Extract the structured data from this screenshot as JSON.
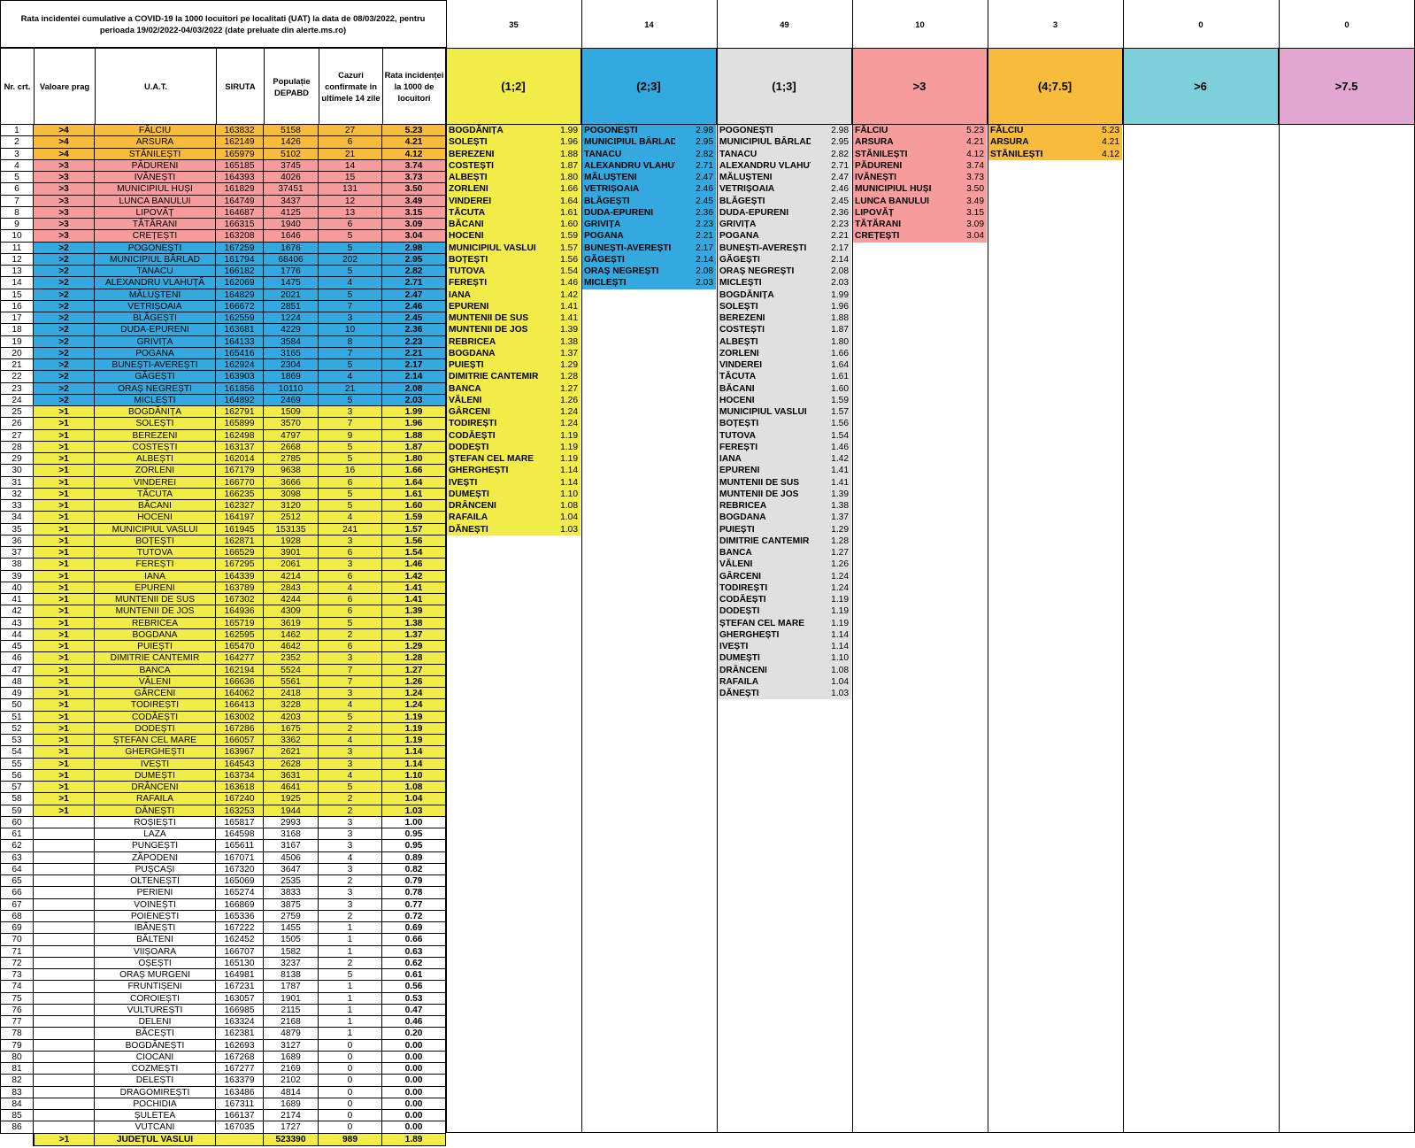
{
  "title": "Rata incidentei cumulative a COVID-19 la 1000 locuitori pe localitati (UAT) la data de 08/03/2022, pentru perioada 19/02/2022-04/03/2022 (date preluate din alerte.ms.ro)",
  "headers": [
    "Nr. crt.",
    "Valoare prag",
    "U.A.T.",
    "SIRUTA",
    "Populație DEPABD",
    "Cazuri confirmate in ultimele 14 zile",
    "Rata incidenței la 1000 de locuitori"
  ],
  "colors": {
    "gt4": "#f8bc3c",
    "gt3": "#f69c9c",
    "gt2": "#33a9e0",
    "gt1": "#f2ec48",
    "grey": "#e0e0e0",
    "gt6": "#7dcfda",
    "gt75": "#e2a7d0"
  },
  "rows": [
    [
      "1",
      ">4",
      "FĂLCIU",
      "163832",
      "5158",
      "27",
      "5.23"
    ],
    [
      "2",
      ">4",
      "ARSURA",
      "162149",
      "1426",
      "6",
      "4.21"
    ],
    [
      "3",
      ">4",
      "STĂNILEȘTI",
      "165979",
      "5102",
      "21",
      "4.12"
    ],
    [
      "4",
      ">3",
      "PĂDURENI",
      "165185",
      "3745",
      "14",
      "3.74"
    ],
    [
      "5",
      ">3",
      "IVĂNEȘTI",
      "164393",
      "4026",
      "15",
      "3.73"
    ],
    [
      "6",
      ">3",
      "MUNICIPIUL HUȘI",
      "161829",
      "37451",
      "131",
      "3.50"
    ],
    [
      "7",
      ">3",
      "LUNCA BANULUI",
      "164749",
      "3437",
      "12",
      "3.49"
    ],
    [
      "8",
      ">3",
      "LIPOVĂȚ",
      "164687",
      "4125",
      "13",
      "3.15"
    ],
    [
      "9",
      ">3",
      "TĂTĂRANI",
      "166315",
      "1940",
      "6",
      "3.09"
    ],
    [
      "10",
      ">3",
      "CREȚEȘTI",
      "163208",
      "1646",
      "5",
      "3.04"
    ],
    [
      "11",
      ">2",
      "POGONEȘTI",
      "167259",
      "1676",
      "5",
      "2.98"
    ],
    [
      "12",
      ">2",
      "MUNICIPIUL BÂRLAD",
      "161794",
      "68406",
      "202",
      "2.95"
    ],
    [
      "13",
      ">2",
      "TANACU",
      "166182",
      "1776",
      "5",
      "2.82"
    ],
    [
      "14",
      ">2",
      "ALEXANDRU VLAHUȚĂ",
      "162069",
      "1475",
      "4",
      "2.71"
    ],
    [
      "15",
      ">2",
      "MĂLUȘTENI",
      "164829",
      "2021",
      "5",
      "2.47"
    ],
    [
      "16",
      ">2",
      "VETRIȘOAIA",
      "166672",
      "2851",
      "7",
      "2.46"
    ],
    [
      "17",
      ">2",
      "BLĂGEȘTI",
      "162559",
      "1224",
      "3",
      "2.45"
    ],
    [
      "18",
      ">2",
      "DUDA-EPURENI",
      "163681",
      "4229",
      "10",
      "2.36"
    ],
    [
      "19",
      ">2",
      "GRIVIȚA",
      "164133",
      "3584",
      "8",
      "2.23"
    ],
    [
      "20",
      ">2",
      "POGANA",
      "165416",
      "3165",
      "7",
      "2.21"
    ],
    [
      "21",
      ">2",
      "BUNEȘTI-AVEREȘTI",
      "162924",
      "2304",
      "5",
      "2.17"
    ],
    [
      "22",
      ">2",
      "GĂGEȘTI",
      "163903",
      "1869",
      "4",
      "2.14"
    ],
    [
      "23",
      ">2",
      "ORAȘ NEGREȘTI",
      "161856",
      "10110",
      "21",
      "2.08"
    ],
    [
      "24",
      ">2",
      "MICLEȘTI",
      "164892",
      "2469",
      "5",
      "2.03"
    ],
    [
      "25",
      ">1",
      "BOGDĂNIȚA",
      "162791",
      "1509",
      "3",
      "1.99"
    ],
    [
      "26",
      ">1",
      "SOLEȘTI",
      "165899",
      "3570",
      "7",
      "1.96"
    ],
    [
      "27",
      ">1",
      "BEREZENI",
      "162498",
      "4797",
      "9",
      "1.88"
    ],
    [
      "28",
      ">1",
      "COSTEȘTI",
      "163137",
      "2668",
      "5",
      "1.87"
    ],
    [
      "29",
      ">1",
      "ALBEȘTI",
      "162014",
      "2785",
      "5",
      "1.80"
    ],
    [
      "30",
      ">1",
      "ZORLENI",
      "167179",
      "9638",
      "16",
      "1.66"
    ],
    [
      "31",
      ">1",
      "VINDEREI",
      "166770",
      "3666",
      "6",
      "1.64"
    ],
    [
      "32",
      ">1",
      "TĂCUTA",
      "166235",
      "3098",
      "5",
      "1.61"
    ],
    [
      "33",
      ">1",
      "BĂCANI",
      "162327",
      "3120",
      "5",
      "1.60"
    ],
    [
      "34",
      ">1",
      "HOCENI",
      "164197",
      "2512",
      "4",
      "1.59"
    ],
    [
      "35",
      ">1",
      "MUNICIPIUL VASLUI",
      "161945",
      "153135",
      "241",
      "1.57"
    ],
    [
      "36",
      ">1",
      "BOȚEȘTI",
      "162871",
      "1928",
      "3",
      "1.56"
    ],
    [
      "37",
      ">1",
      "TUTOVA",
      "166529",
      "3901",
      "6",
      "1.54"
    ],
    [
      "38",
      ">1",
      "FEREȘTI",
      "167295",
      "2061",
      "3",
      "1.46"
    ],
    [
      "39",
      ">1",
      "IANA",
      "164339",
      "4214",
      "6",
      "1.42"
    ],
    [
      "40",
      ">1",
      "EPURENI",
      "163789",
      "2843",
      "4",
      "1.41"
    ],
    [
      "41",
      ">1",
      "MUNTENII DE SUS",
      "167302",
      "4244",
      "6",
      "1.41"
    ],
    [
      "42",
      ">1",
      "MUNTENII DE JOS",
      "164936",
      "4309",
      "6",
      "1.39"
    ],
    [
      "43",
      ">1",
      "REBRICEA",
      "165719",
      "3619",
      "5",
      "1.38"
    ],
    [
      "44",
      ">1",
      "BOGDANA",
      "162595",
      "1462",
      "2",
      "1.37"
    ],
    [
      "45",
      ">1",
      "PUIEȘTI",
      "165470",
      "4642",
      "6",
      "1.29"
    ],
    [
      "46",
      ">1",
      "DIMITRIE CANTEMIR",
      "164277",
      "2352",
      "3",
      "1.28"
    ],
    [
      "47",
      ">1",
      "BANCA",
      "162194",
      "5524",
      "7",
      "1.27"
    ],
    [
      "48",
      ">1",
      "VĂLENI",
      "166636",
      "5561",
      "7",
      "1.26"
    ],
    [
      "49",
      ">1",
      "GÂRCENI",
      "164062",
      "2418",
      "3",
      "1.24"
    ],
    [
      "50",
      ">1",
      "TODIREȘTI",
      "166413",
      "3228",
      "4",
      "1.24"
    ],
    [
      "51",
      ">1",
      "CODĂEȘTI",
      "163002",
      "4203",
      "5",
      "1.19"
    ],
    [
      "52",
      ">1",
      "DODEȘTI",
      "167286",
      "1675",
      "2",
      "1.19"
    ],
    [
      "53",
      ">1",
      "ȘTEFAN CEL MARE",
      "166057",
      "3362",
      "4",
      "1.19"
    ],
    [
      "54",
      ">1",
      "GHERGHEȘTI",
      "163967",
      "2621",
      "3",
      "1.14"
    ],
    [
      "55",
      ">1",
      "IVEȘTI",
      "164543",
      "2628",
      "3",
      "1.14"
    ],
    [
      "56",
      ">1",
      "DUMEȘTI",
      "163734",
      "3631",
      "4",
      "1.10"
    ],
    [
      "57",
      ">1",
      "DRÂNCENI",
      "163618",
      "4641",
      "5",
      "1.08"
    ],
    [
      "58",
      ">1",
      "RAFAILA",
      "167240",
      "1925",
      "2",
      "1.04"
    ],
    [
      "59",
      ">1",
      "DĂNEȘTI",
      "163253",
      "1944",
      "2",
      "1.03"
    ],
    [
      "60",
      "",
      "ROȘIEȘTI",
      "165817",
      "2993",
      "3",
      "1.00"
    ],
    [
      "61",
      "",
      "LAZA",
      "164598",
      "3168",
      "3",
      "0.95"
    ],
    [
      "62",
      "",
      "PUNGEȘTI",
      "165611",
      "3167",
      "3",
      "0.95"
    ],
    [
      "63",
      "",
      "ZĂPODENI",
      "167071",
      "4506",
      "4",
      "0.89"
    ],
    [
      "64",
      "",
      "PUȘCAȘI",
      "167320",
      "3647",
      "3",
      "0.82"
    ],
    [
      "65",
      "",
      "OLTENEȘTI",
      "165069",
      "2535",
      "2",
      "0.79"
    ],
    [
      "66",
      "",
      "PERIENI",
      "165274",
      "3833",
      "3",
      "0.78"
    ],
    [
      "67",
      "",
      "VOINEȘTI",
      "166869",
      "3875",
      "3",
      "0.77"
    ],
    [
      "68",
      "",
      "POIENEȘTI",
      "165336",
      "2759",
      "2",
      "0.72"
    ],
    [
      "69",
      "",
      "IBĂNEȘTI",
      "167222",
      "1455",
      "1",
      "0.69"
    ],
    [
      "70",
      "",
      "BĂLTENI",
      "162452",
      "1505",
      "1",
      "0.66"
    ],
    [
      "71",
      "",
      "VIIȘOARA",
      "166707",
      "1582",
      "1",
      "0.63"
    ],
    [
      "72",
      "",
      "OȘEȘTI",
      "165130",
      "3237",
      "2",
      "0.62"
    ],
    [
      "73",
      "",
      "ORAȘ MURGENI",
      "164981",
      "8138",
      "5",
      "0.61"
    ],
    [
      "74",
      "",
      "FRUNTIȘENI",
      "167231",
      "1787",
      "1",
      "0.56"
    ],
    [
      "75",
      "",
      "COROIEȘTI",
      "163057",
      "1901",
      "1",
      "0.53"
    ],
    [
      "76",
      "",
      "VULTUREȘTI",
      "166985",
      "2115",
      "1",
      "0.47"
    ],
    [
      "77",
      "",
      "DELENI",
      "163324",
      "2168",
      "1",
      "0.46"
    ],
    [
      "78",
      "",
      "BĂCEȘTI",
      "162381",
      "4879",
      "1",
      "0.20"
    ],
    [
      "79",
      "",
      "BOGDĂNEȘTI",
      "162693",
      "3127",
      "0",
      "0.00"
    ],
    [
      "80",
      "",
      "CIOCANI",
      "167268",
      "1689",
      "0",
      "0.00"
    ],
    [
      "81",
      "",
      "COZMEȘTI",
      "167277",
      "2169",
      "0",
      "0.00"
    ],
    [
      "82",
      "",
      "DELEȘTI",
      "163379",
      "2102",
      "0",
      "0.00"
    ],
    [
      "83",
      "",
      "DRAGOMIREȘTI",
      "163486",
      "4814",
      "0",
      "0.00"
    ],
    [
      "84",
      "",
      "POCHIDIA",
      "167311",
      "1689",
      "0",
      "0.00"
    ],
    [
      "85",
      "",
      "ȘULETEA",
      "166137",
      "2174",
      "0",
      "0.00"
    ],
    [
      "86",
      "",
      "VUTCANI",
      "167035",
      "1727",
      "0",
      "0.00"
    ]
  ],
  "total": [
    "",
    ">1",
    "JUDEȚUL VASLUI",
    "",
    "523390",
    "989",
    "1.89"
  ],
  "panels": [
    {
      "count": "35",
      "label": "(1;2]",
      "color": "#f2ec48",
      "items": [
        [
          "BOGDĂNIȚA",
          "1.99"
        ],
        [
          "SOLEȘTI",
          "1.96"
        ],
        [
          "BEREZENI",
          "1.88"
        ],
        [
          "COSTEȘTI",
          "1.87"
        ],
        [
          "ALBEȘTI",
          "1.80"
        ],
        [
          "ZORLENI",
          "1.66"
        ],
        [
          "VINDEREI",
          "1.64"
        ],
        [
          "TĂCUTA",
          "1.61"
        ],
        [
          "BĂCANI",
          "1.60"
        ],
        [
          "HOCENI",
          "1.59"
        ],
        [
          "MUNICIPIUL VASLUI",
          "1.57"
        ],
        [
          "BOȚEȘTI",
          "1.56"
        ],
        [
          "TUTOVA",
          "1.54"
        ],
        [
          "FEREȘTI",
          "1.46"
        ],
        [
          "IANA",
          "1.42"
        ],
        [
          "EPURENI",
          "1.41"
        ],
        [
          "MUNTENII DE SUS",
          "1.41"
        ],
        [
          "MUNTENII DE JOS",
          "1.39"
        ],
        [
          "REBRICEA",
          "1.38"
        ],
        [
          "BOGDANA",
          "1.37"
        ],
        [
          "PUIEȘTI",
          "1.29"
        ],
        [
          "DIMITRIE CANTEMIR",
          "1.28"
        ],
        [
          "BANCA",
          "1.27"
        ],
        [
          "VĂLENI",
          "1.26"
        ],
        [
          "GÂRCENI",
          "1.24"
        ],
        [
          "TODIREȘTI",
          "1.24"
        ],
        [
          "CODĂEȘTI",
          "1.19"
        ],
        [
          "DODEȘTI",
          "1.19"
        ],
        [
          "ȘTEFAN CEL MARE",
          "1.19"
        ],
        [
          "GHERGHEȘTI",
          "1.14"
        ],
        [
          "IVEȘTI",
          "1.14"
        ],
        [
          "DUMEȘTI",
          "1.10"
        ],
        [
          "DRÂNCENI",
          "1.08"
        ],
        [
          "RAFAILA",
          "1.04"
        ],
        [
          "DĂNEȘTI",
          "1.03"
        ]
      ]
    },
    {
      "count": "14",
      "label": "(2;3]",
      "color": "#33a9e0",
      "items": [
        [
          "POGONEȘTI",
          "2.98"
        ],
        [
          "MUNICIPIUL BÂRLAD",
          "2.95"
        ],
        [
          "TANACU",
          "2.82"
        ],
        [
          "ALEXANDRU VLAHUȚ",
          "2.71"
        ],
        [
          "MĂLUȘTENI",
          "2.47"
        ],
        [
          "VETRIȘOAIA",
          "2.46"
        ],
        [
          "BLĂGEȘTI",
          "2.45"
        ],
        [
          "DUDA-EPURENI",
          "2.36"
        ],
        [
          "GRIVIȚA",
          "2.23"
        ],
        [
          "POGANA",
          "2.21"
        ],
        [
          "BUNEȘTI-AVEREȘTI",
          "2.17"
        ],
        [
          "GĂGEȘTI",
          "2.14"
        ],
        [
          "ORAȘ NEGREȘTI",
          "2.08"
        ],
        [
          "MICLEȘTI",
          "2.03"
        ]
      ]
    },
    {
      "count": "49",
      "label": "(1;3]",
      "color": "#e0e0e0",
      "items": [
        [
          "POGONEȘTI",
          "2.98"
        ],
        [
          "MUNICIPIUL BÂRLAD",
          "2.95"
        ],
        [
          "TANACU",
          "2.82"
        ],
        [
          "ALEXANDRU VLAHUȚ",
          "2.71"
        ],
        [
          "MĂLUȘTENI",
          "2.47"
        ],
        [
          "VETRIȘOAIA",
          "2.46"
        ],
        [
          "BLĂGEȘTI",
          "2.45"
        ],
        [
          "DUDA-EPURENI",
          "2.36"
        ],
        [
          "GRIVIȚA",
          "2.23"
        ],
        [
          "POGANA",
          "2.21"
        ],
        [
          "BUNEȘTI-AVEREȘTI",
          "2.17"
        ],
        [
          "GĂGEȘTI",
          "2.14"
        ],
        [
          "ORAȘ NEGREȘTI",
          "2.08"
        ],
        [
          "MICLEȘTI",
          "2.03"
        ],
        [
          "BOGDĂNIȚA",
          "1.99"
        ],
        [
          "SOLEȘTI",
          "1.96"
        ],
        [
          "BEREZENI",
          "1.88"
        ],
        [
          "COSTEȘTI",
          "1.87"
        ],
        [
          "ALBEȘTI",
          "1.80"
        ],
        [
          "ZORLENI",
          "1.66"
        ],
        [
          "VINDEREI",
          "1.64"
        ],
        [
          "TĂCUTA",
          "1.61"
        ],
        [
          "BĂCANI",
          "1.60"
        ],
        [
          "HOCENI",
          "1.59"
        ],
        [
          "MUNICIPIUL VASLUI",
          "1.57"
        ],
        [
          "BOȚEȘTI",
          "1.56"
        ],
        [
          "TUTOVA",
          "1.54"
        ],
        [
          "FEREȘTI",
          "1.46"
        ],
        [
          "IANA",
          "1.42"
        ],
        [
          "EPURENI",
          "1.41"
        ],
        [
          "MUNTENII DE SUS",
          "1.41"
        ],
        [
          "MUNTENII DE JOS",
          "1.39"
        ],
        [
          "REBRICEA",
          "1.38"
        ],
        [
          "BOGDANA",
          "1.37"
        ],
        [
          "PUIEȘTI",
          "1.29"
        ],
        [
          "DIMITRIE CANTEMIR",
          "1.28"
        ],
        [
          "BANCA",
          "1.27"
        ],
        [
          "VĂLENI",
          "1.26"
        ],
        [
          "GÂRCENI",
          "1.24"
        ],
        [
          "TODIREȘTI",
          "1.24"
        ],
        [
          "CODĂEȘTI",
          "1.19"
        ],
        [
          "DODEȘTI",
          "1.19"
        ],
        [
          "ȘTEFAN CEL MARE",
          "1.19"
        ],
        [
          "GHERGHEȘTI",
          "1.14"
        ],
        [
          "IVEȘTI",
          "1.14"
        ],
        [
          "DUMEȘTI",
          "1.10"
        ],
        [
          "DRÂNCENI",
          "1.08"
        ],
        [
          "RAFAILA",
          "1.04"
        ],
        [
          "DĂNEȘTI",
          "1.03"
        ]
      ]
    },
    {
      "count": "10",
      "label": ">3",
      "color": "#f69c9c",
      "items": [
        [
          "FĂLCIU",
          "5.23"
        ],
        [
          "ARSURA",
          "4.21"
        ],
        [
          "STĂNILEȘTI",
          "4.12"
        ],
        [
          "PĂDURENI",
          "3.74"
        ],
        [
          "IVĂNEȘTI",
          "3.73"
        ],
        [
          "MUNICIPIUL HUȘI",
          "3.50"
        ],
        [
          "LUNCA BANULUI",
          "3.49"
        ],
        [
          "LIPOVĂȚ",
          "3.15"
        ],
        [
          "TĂTĂRANI",
          "3.09"
        ],
        [
          "CREȚEȘTI",
          "3.04"
        ]
      ]
    },
    {
      "count": "3",
      "label": "(4;7.5]",
      "color": "#f8bc3c",
      "items": [
        [
          "FĂLCIU",
          "5.23"
        ],
        [
          "ARSURA",
          "4.21"
        ],
        [
          "STĂNILEȘTI",
          "4.12"
        ]
      ]
    },
    {
      "count": "0",
      "label": ">6",
      "color": "#7dcfda",
      "items": []
    },
    {
      "count": "0",
      "label": ">7.5",
      "color": "#e2a7d0",
      "items": []
    }
  ]
}
